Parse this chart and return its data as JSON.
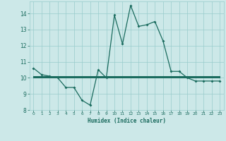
{
  "xlabel": "Humidex (Indice chaleur)",
  "x": [
    0,
    1,
    2,
    3,
    4,
    5,
    6,
    7,
    8,
    9,
    10,
    11,
    12,
    13,
    14,
    15,
    16,
    17,
    18,
    19,
    20,
    21,
    22,
    23
  ],
  "y_main": [
    10.6,
    10.2,
    10.1,
    10.0,
    9.4,
    9.4,
    8.6,
    8.3,
    10.5,
    10.0,
    13.9,
    12.1,
    14.5,
    13.2,
    13.3,
    13.5,
    12.3,
    10.4,
    10.4,
    10.0,
    9.8,
    9.8,
    9.8,
    9.8
  ],
  "y_flat1": [
    10.0,
    10.0,
    10.0,
    10.0,
    10.0,
    10.0,
    10.0,
    10.0,
    10.0,
    10.0,
    10.0,
    10.0,
    10.0,
    10.0,
    10.0,
    10.0,
    10.0,
    10.0,
    10.0,
    10.0,
    10.0,
    10.0,
    10.0,
    10.0
  ],
  "y_flat2": [
    10.05,
    10.05,
    10.05,
    10.05,
    10.05,
    10.05,
    10.05,
    10.05,
    10.05,
    10.05,
    10.05,
    10.05,
    10.05,
    10.05,
    10.05,
    10.05,
    10.05,
    10.05,
    10.05,
    10.05,
    10.05,
    10.05,
    10.05,
    10.05
  ],
  "y_flat3": [
    10.1,
    10.1,
    10.1,
    10.1,
    10.1,
    10.1,
    10.1,
    10.1,
    10.1,
    10.1,
    10.1,
    10.1,
    10.1,
    10.1,
    10.1,
    10.1,
    10.1,
    10.1,
    10.1,
    10.1,
    10.1,
    10.1,
    10.1,
    10.1
  ],
  "ylim": [
    8,
    14.75
  ],
  "xlim": [
    -0.5,
    23.5
  ],
  "yticks": [
    8,
    9,
    10,
    11,
    12,
    13,
    14
  ],
  "xticks": [
    0,
    1,
    2,
    3,
    4,
    5,
    6,
    7,
    8,
    9,
    10,
    11,
    12,
    13,
    14,
    15,
    16,
    17,
    18,
    19,
    20,
    21,
    22,
    23
  ],
  "line_color": "#1a6b5e",
  "bg_color": "#cce8e8",
  "grid_color": "#99cccc",
  "markersize": 2.0,
  "linewidth": 0.9
}
